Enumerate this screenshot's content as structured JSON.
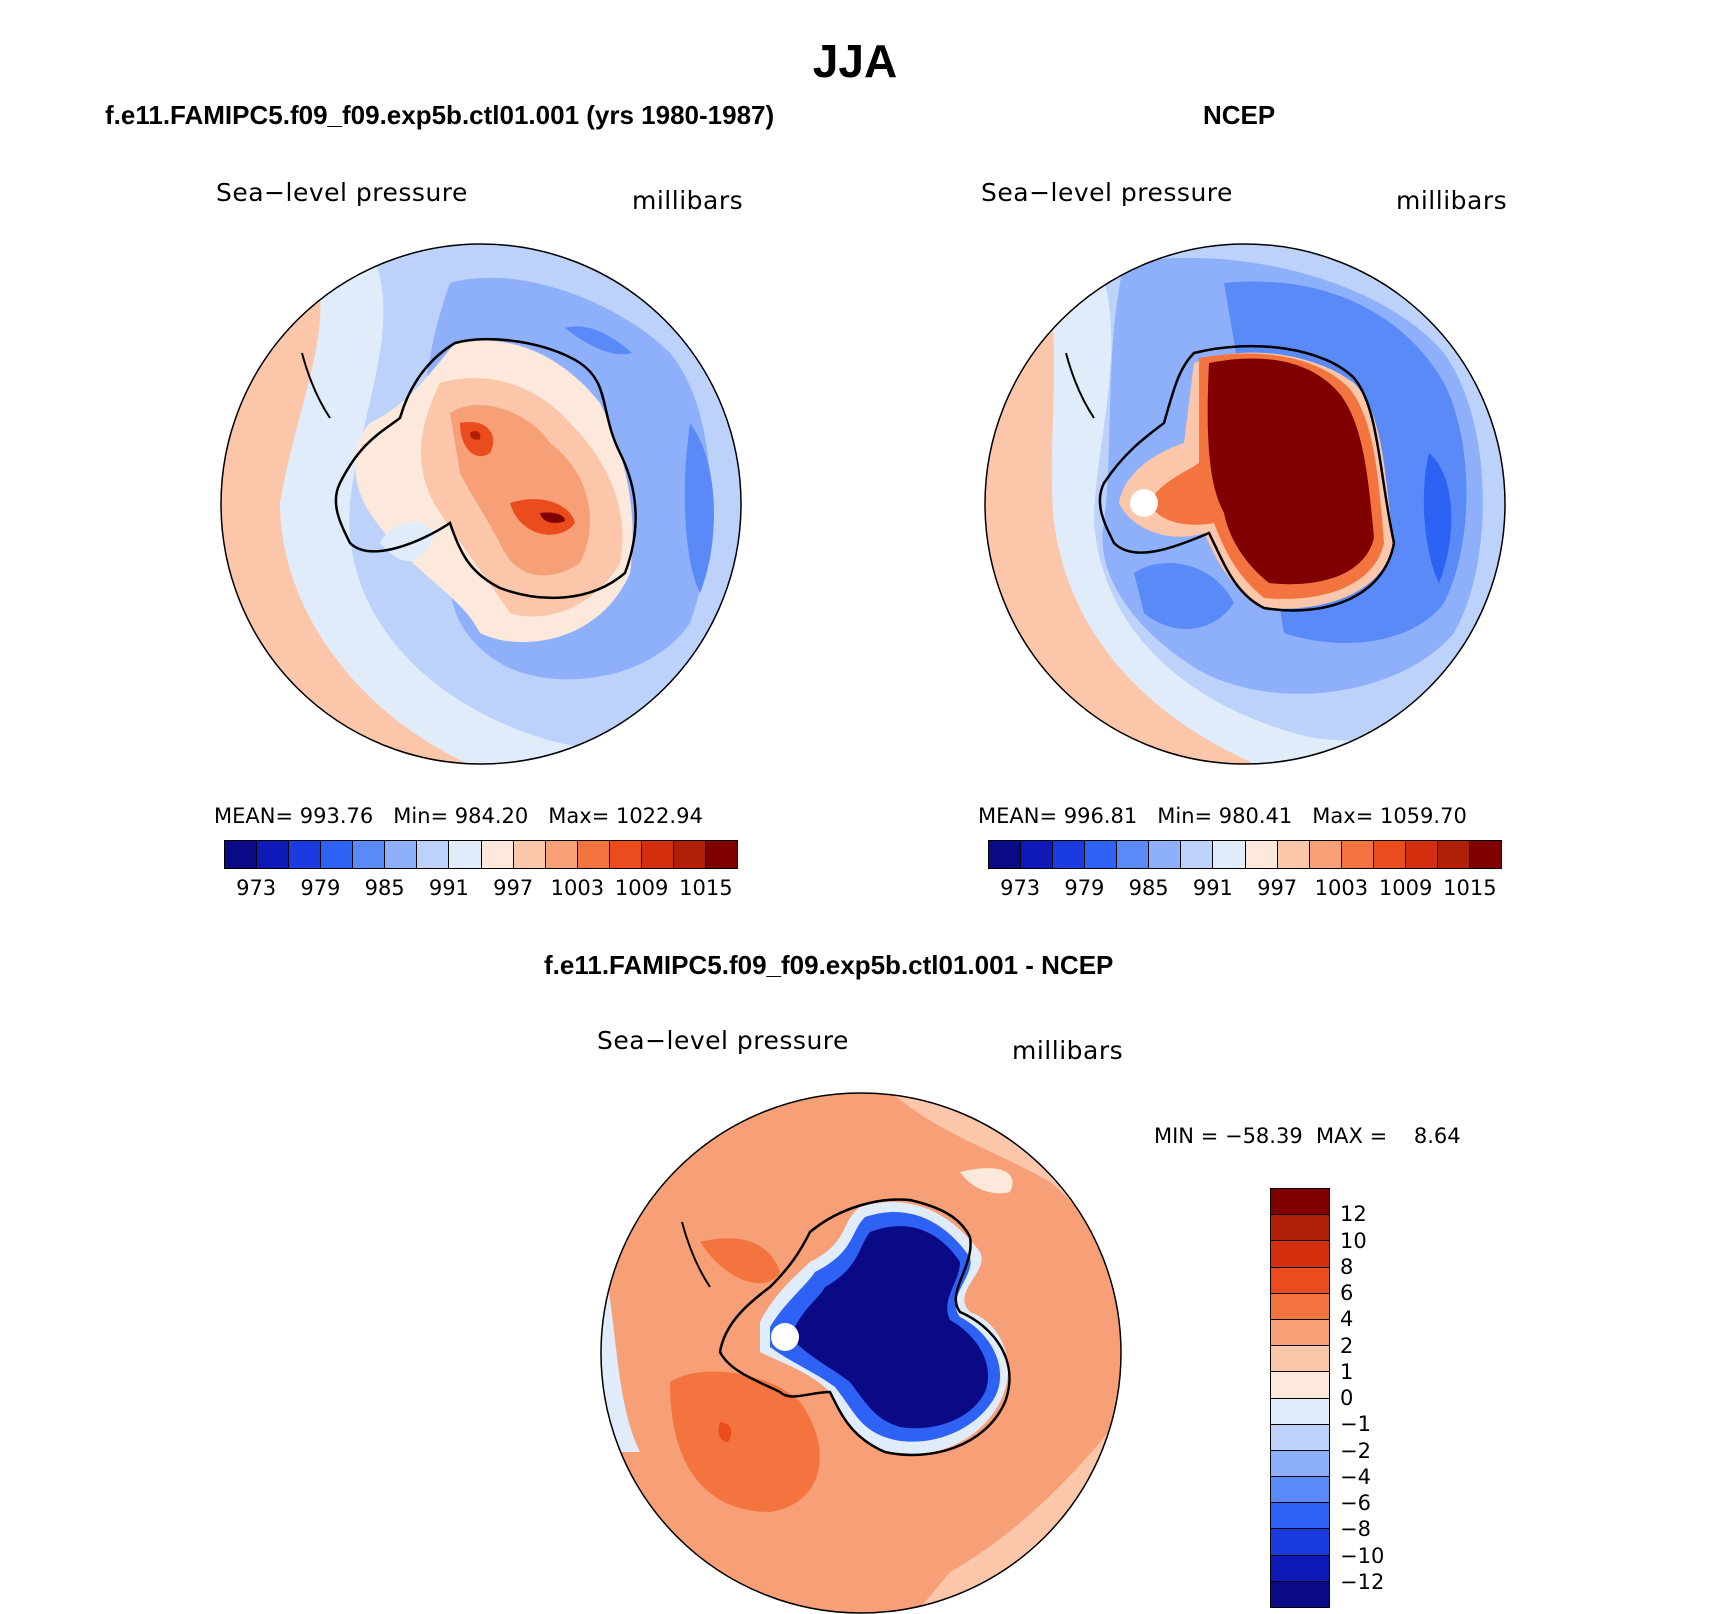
{
  "title": "JJA",
  "panels": {
    "model": {
      "title": "f.e11.FAMIPC5.f09_f09.exp5b.ctl01.001 (yrs 1980-1987)",
      "left_label": "Sea−level pressure",
      "right_label": "millibars",
      "stats": "MEAN= 993.76   Min= 984.20   Max= 1022.94"
    },
    "obs": {
      "title": "NCEP",
      "left_label": "Sea−level pressure",
      "right_label": "millibars",
      "stats": "MEAN= 996.81   Min= 980.41   Max= 1059.70"
    },
    "diff": {
      "title": "f.e11.FAMIPC5.f09_f09.exp5b.ctl01.001 - NCEP",
      "left_label": "Sea−level pressure",
      "right_label": "millibars",
      "stats": "MIN = −58.39  MAX =    8.64"
    }
  },
  "colorbar_abs": {
    "colors": [
      "#0a0a86",
      "#0d1ab8",
      "#1a3be0",
      "#2e62f5",
      "#5a8af7",
      "#8eb0fa",
      "#bcd2fb",
      "#e0ecfa",
      "#fce9dc",
      "#fbc6aa",
      "#f79f76",
      "#f4743f",
      "#eb4c1d",
      "#d4300f",
      "#b01f08",
      "#800000"
    ],
    "tick_labels": [
      "973",
      "979",
      "985",
      "991",
      "997",
      "1003",
      "1009",
      "1015"
    ]
  },
  "colorbar_diff": {
    "colors": [
      "#800000",
      "#b01f08",
      "#d4300f",
      "#eb4c1d",
      "#f4743f",
      "#f79f76",
      "#fbc6aa",
      "#fce9dc",
      "#e0ecfa",
      "#bcd2fb",
      "#8eb0fa",
      "#5a8af7",
      "#2e62f5",
      "#1a3be0",
      "#0d1ab8",
      "#0a0a86"
    ],
    "tick_labels": [
      "12",
      "10",
      "8",
      "6",
      "4",
      "2",
      "1",
      "0",
      "−1",
      "−2",
      "−4",
      "−6",
      "−8",
      "−10",
      "−12"
    ]
  }
}
